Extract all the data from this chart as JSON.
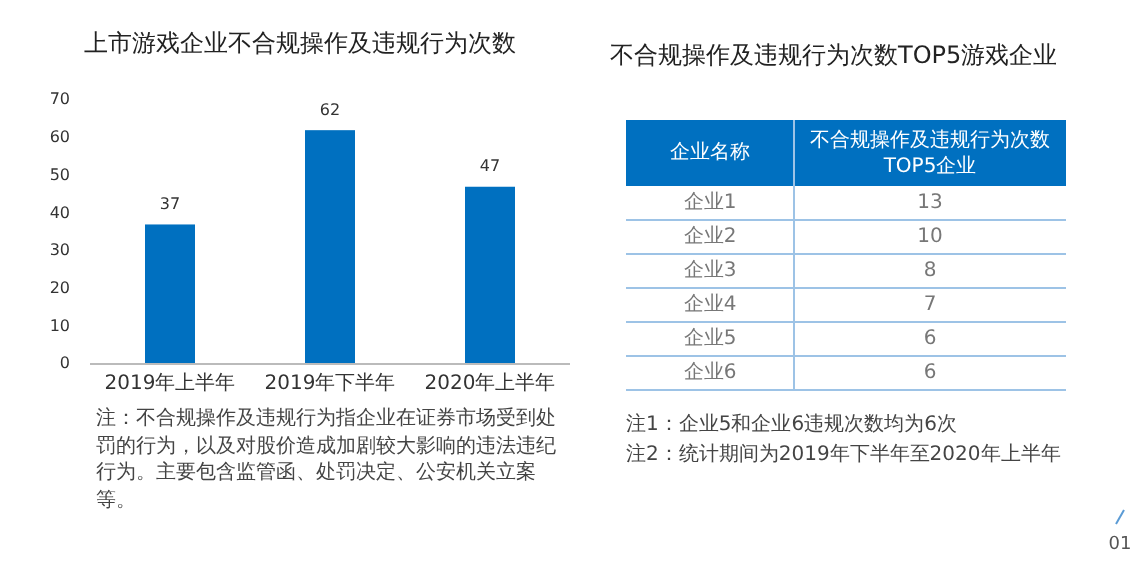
{
  "chart_data": [
    {
      "type": "bar",
      "title": "上市游戏企业不合规操作及违规行为次数",
      "categories": [
        "2019年上半年",
        "2019年下半年",
        "2020年上半年"
      ],
      "values": [
        37,
        62,
        47
      ],
      "color": "#0070c0",
      "ylim": [
        0,
        70
      ],
      "yticks": [
        0,
        10,
        20,
        30,
        40,
        50,
        60,
        70
      ],
      "data_labels": true,
      "grid": false,
      "annotations": [
        "注：不合规操作及违规行为指企业在证券市场受到处罚的行为，以及对股价造成加剧较大影响的违法违纪行为。主要包含监管函、处罚决定、公安机关立案等。"
      ]
    },
    {
      "type": "heatmap",
      "title": "不合规操作及违规行为次数TOP5游戏企业",
      "ylabel": "企业名称",
      "categories": [
        "不合规操作及违规行为次数TOP5企业"
      ],
      "y_categories": [
        "企业1",
        "企业2",
        "企业3",
        "企业4",
        "企业5",
        "企业6"
      ],
      "cells": [
        [
          13
        ],
        [
          10
        ],
        [
          8
        ],
        [
          7
        ],
        [
          6
        ],
        [
          6
        ]
      ],
      "data_labels": true,
      "color": "#0070c0",
      "annotations": [
        "注1：企业5和企业6违规次数均为6次",
        "注2：统计期间为2019年下半年至2020年上半年",
        "01"
      ]
    }
  ]
}
